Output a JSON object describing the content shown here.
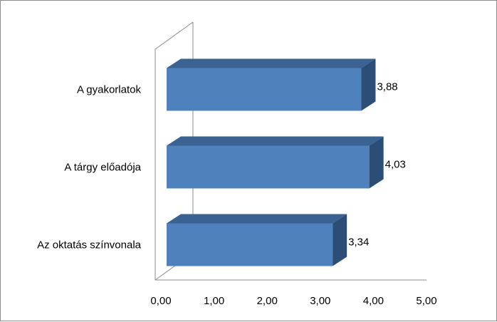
{
  "chart_data": {
    "type": "bar",
    "orientation": "horizontal",
    "style": "3d",
    "categories": [
      "Az oktatás színvonala",
      "A tárgy előadója",
      "A gyakorlatok"
    ],
    "values": [
      3.34,
      4.03,
      3.88
    ],
    "value_labels": [
      "3,34",
      "4,03",
      "3,88"
    ],
    "xlim": [
      0,
      5
    ],
    "ticks": [
      0,
      1,
      2,
      3,
      4,
      5
    ],
    "tick_labels": [
      "0,00",
      "1,00",
      "2,00",
      "3,00",
      "4,00",
      "5,00"
    ],
    "title": "",
    "xlabel": "",
    "ylabel": "",
    "grid": false,
    "legend": "none",
    "colors": {
      "bar_front": "#4f81bd",
      "bar_top": "#3a6293",
      "bar_side": "#2c4d75",
      "axis": "#8c8c8c"
    }
  }
}
